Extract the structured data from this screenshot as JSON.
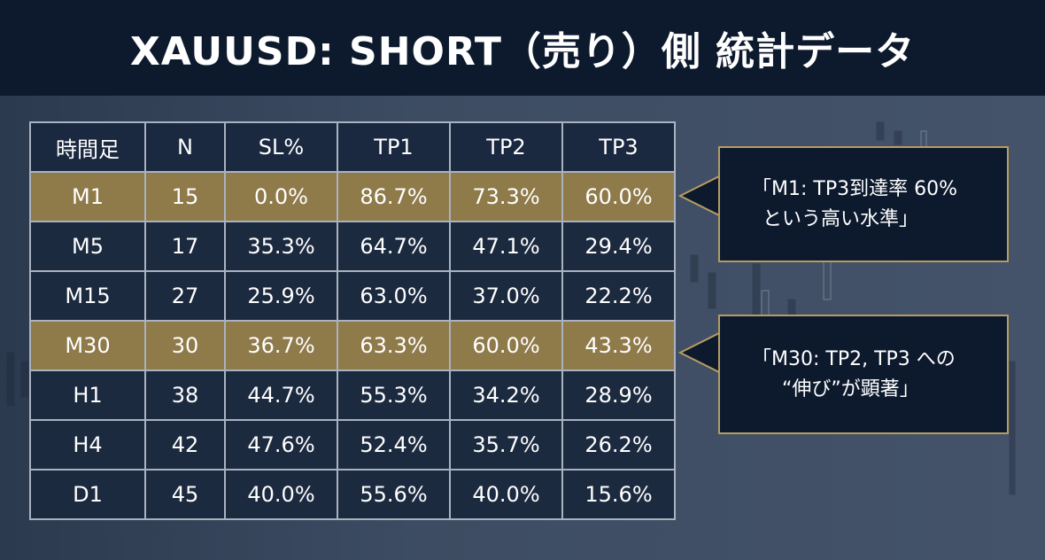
{
  "title": "XAUUSD: SHORT（売り）側 統計データ",
  "table": {
    "headers": [
      "時間足",
      "N",
      "SL%",
      "TP1",
      "TP2",
      "TP3"
    ],
    "rows": [
      [
        "M1",
        "15",
        "0.0%",
        "86.7%",
        "73.3%",
        "60.0%"
      ],
      [
        "M5",
        "17",
        "35.3%",
        "64.7%",
        "47.1%",
        "29.4%"
      ],
      [
        "M15",
        "27",
        "25.9%",
        "63.0%",
        "37.0%",
        "22.2%"
      ],
      [
        "M30",
        "30",
        "36.7%",
        "63.3%",
        "60.0%",
        "43.3%"
      ],
      [
        "H1",
        "38",
        "44.7%",
        "55.3%",
        "34.2%",
        "28.9%"
      ],
      [
        "H4",
        "42",
        "47.6%",
        "52.4%",
        "35.7%",
        "26.2%"
      ],
      [
        "D1",
        "45",
        "40.0%",
        "55.6%",
        "40.0%",
        "15.6%"
      ]
    ],
    "highlighted": [
      "M1",
      "M30"
    ]
  },
  "callouts": [
    {
      "line1": "「M1: TP3到達率 60%",
      "line2": "という高い水準」"
    },
    {
      "line1": "「M30: TP2, TP3 への",
      "line2": "“伸び”が顕著」"
    }
  ],
  "colors": {
    "gold": "#8f7a4a",
    "navy": "#0d1a2e",
    "border": "#b69c62"
  }
}
